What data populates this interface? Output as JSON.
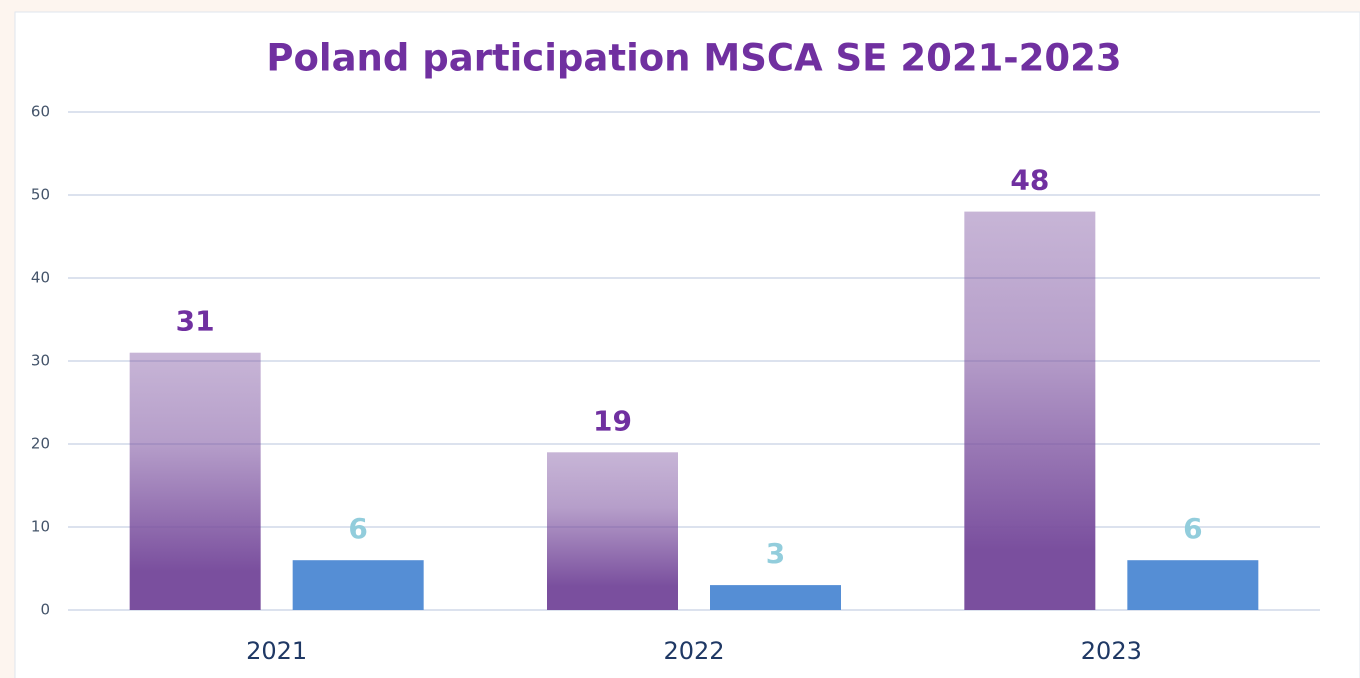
{
  "chart_data": {
    "type": "bar",
    "title": "Poland participation MSCA SE 2021-2023",
    "categories": [
      "2021",
      "2022",
      "2023"
    ],
    "series": [
      {
        "color": "#7a4f9e",
        "label_color": "#7030a0",
        "values": [
          31,
          19,
          48
        ]
      },
      {
        "color": "#558ed5",
        "label_color": "#92cddc",
        "values": [
          6,
          3,
          6
        ]
      }
    ],
    "ylim": [
      0,
      60
    ],
    "yticks": [
      0,
      10,
      20,
      30,
      40,
      50,
      60
    ],
    "grid": true
  }
}
